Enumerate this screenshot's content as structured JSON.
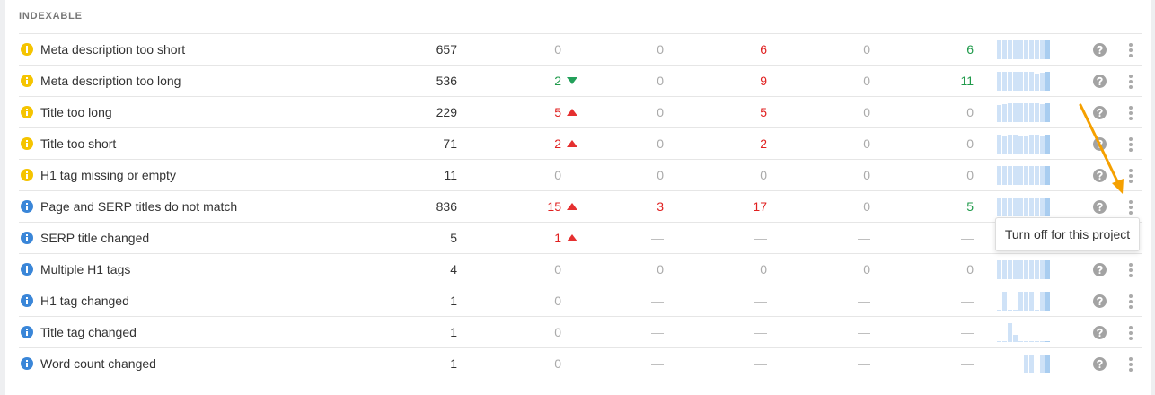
{
  "section_title": "INDEXABLE",
  "colors": {
    "warning": "#f5c400",
    "info": "#3a86d8",
    "increase": "#e02020",
    "decrease": "#1f9a4a",
    "annotation_arrow": "#f5a000"
  },
  "rows": [
    {
      "name": "Meta description too short",
      "icon": "warning",
      "cells": [
        {
          "v": "657",
          "c": "dark"
        },
        {
          "v": "0",
          "c": "gray"
        },
        {
          "v": "0",
          "c": "gray"
        },
        {
          "v": "6",
          "c": "red"
        },
        {
          "v": "0",
          "c": "gray"
        },
        {
          "v": "6",
          "c": "green"
        }
      ],
      "trend": [
        1,
        1,
        1,
        1,
        1,
        1,
        1,
        1,
        1,
        1
      ]
    },
    {
      "name": "Meta description too long",
      "icon": "warning",
      "cells": [
        {
          "v": "536",
          "c": "dark"
        },
        {
          "v": "2",
          "c": "green",
          "arrow": "down"
        },
        {
          "v": "0",
          "c": "gray"
        },
        {
          "v": "9",
          "c": "red"
        },
        {
          "v": "0",
          "c": "gray"
        },
        {
          "v": "11",
          "c": "green"
        }
      ],
      "trend": [
        1,
        1,
        1,
        1,
        1,
        1,
        1,
        0.9,
        0.95,
        1
      ]
    },
    {
      "name": "Title too long",
      "icon": "warning",
      "cells": [
        {
          "v": "229",
          "c": "dark"
        },
        {
          "v": "5",
          "c": "red",
          "arrow": "up"
        },
        {
          "v": "0",
          "c": "gray"
        },
        {
          "v": "5",
          "c": "red"
        },
        {
          "v": "0",
          "c": "gray"
        },
        {
          "v": "0",
          "c": "gray"
        }
      ],
      "trend": [
        0.9,
        0.95,
        1,
        1,
        1,
        1,
        1,
        1,
        0.95,
        1
      ]
    },
    {
      "name": "Title too short",
      "icon": "warning",
      "cells": [
        {
          "v": "71",
          "c": "dark"
        },
        {
          "v": "2",
          "c": "red",
          "arrow": "up"
        },
        {
          "v": "0",
          "c": "gray"
        },
        {
          "v": "2",
          "c": "red"
        },
        {
          "v": "0",
          "c": "gray"
        },
        {
          "v": "0",
          "c": "gray"
        }
      ],
      "trend": [
        1,
        0.95,
        1,
        1,
        0.95,
        0.95,
        1,
        1,
        0.95,
        1
      ]
    },
    {
      "name": "H1 tag missing or empty",
      "icon": "warning",
      "cells": [
        {
          "v": "11",
          "c": "dark"
        },
        {
          "v": "0",
          "c": "gray"
        },
        {
          "v": "0",
          "c": "gray"
        },
        {
          "v": "0",
          "c": "gray"
        },
        {
          "v": "0",
          "c": "gray"
        },
        {
          "v": "0",
          "c": "gray"
        }
      ],
      "trend": [
        1,
        1,
        1,
        1,
        1,
        1,
        1,
        1,
        1,
        1
      ]
    },
    {
      "name": "Page and SERP titles do not match",
      "icon": "info",
      "cells": [
        {
          "v": "836",
          "c": "dark"
        },
        {
          "v": "15",
          "c": "red",
          "arrow": "up"
        },
        {
          "v": "3",
          "c": "red"
        },
        {
          "v": "17",
          "c": "red"
        },
        {
          "v": "0",
          "c": "gray"
        },
        {
          "v": "5",
          "c": "green"
        }
      ],
      "trend": [
        1,
        1,
        1,
        1,
        1,
        1,
        1,
        1,
        1,
        1
      ]
    },
    {
      "name": "SERP title changed",
      "icon": "info",
      "cells": [
        {
          "v": "5",
          "c": "dark"
        },
        {
          "v": "1",
          "c": "red",
          "arrow": "up"
        },
        {
          "v": "—",
          "c": "dash"
        },
        {
          "v": "—",
          "c": "dash"
        },
        {
          "v": "—",
          "c": "dash"
        },
        {
          "v": "—",
          "c": "dash"
        }
      ],
      "trend": []
    },
    {
      "name": "Multiple H1 tags",
      "icon": "info",
      "cells": [
        {
          "v": "4",
          "c": "dark"
        },
        {
          "v": "0",
          "c": "gray"
        },
        {
          "v": "0",
          "c": "gray"
        },
        {
          "v": "0",
          "c": "gray"
        },
        {
          "v": "0",
          "c": "gray"
        },
        {
          "v": "0",
          "c": "gray"
        }
      ],
      "trend": [
        1,
        1,
        1,
        1,
        1,
        1,
        1,
        1,
        1,
        1
      ]
    },
    {
      "name": "H1 tag changed",
      "icon": "info",
      "cells": [
        {
          "v": "1",
          "c": "dark"
        },
        {
          "v": "0",
          "c": "gray"
        },
        {
          "v": "—",
          "c": "dash"
        },
        {
          "v": "—",
          "c": "dash"
        },
        {
          "v": "—",
          "c": "dash"
        },
        {
          "v": "—",
          "c": "dash"
        }
      ],
      "trend": [
        0.05,
        1,
        0.05,
        0.05,
        1,
        1,
        1,
        0.05,
        1,
        1
      ]
    },
    {
      "name": "Title tag changed",
      "icon": "info",
      "cells": [
        {
          "v": "1",
          "c": "dark"
        },
        {
          "v": "0",
          "c": "gray"
        },
        {
          "v": "—",
          "c": "dash"
        },
        {
          "v": "—",
          "c": "dash"
        },
        {
          "v": "—",
          "c": "dash"
        },
        {
          "v": "—",
          "c": "dash"
        }
      ],
      "trend": [
        0.05,
        0.05,
        1,
        0.4,
        0.05,
        0.05,
        0.05,
        0.05,
        0.05,
        0.05
      ]
    },
    {
      "name": "Word count changed",
      "icon": "info",
      "cells": [
        {
          "v": "1",
          "c": "dark"
        },
        {
          "v": "0",
          "c": "gray"
        },
        {
          "v": "—",
          "c": "dash"
        },
        {
          "v": "—",
          "c": "dash"
        },
        {
          "v": "—",
          "c": "dash"
        },
        {
          "v": "—",
          "c": "dash"
        }
      ],
      "trend": [
        0.05,
        0.05,
        0.05,
        0.05,
        0.05,
        1,
        1,
        0.05,
        1,
        1
      ]
    }
  ],
  "tooltip": {
    "text": "Turn off for this project"
  }
}
